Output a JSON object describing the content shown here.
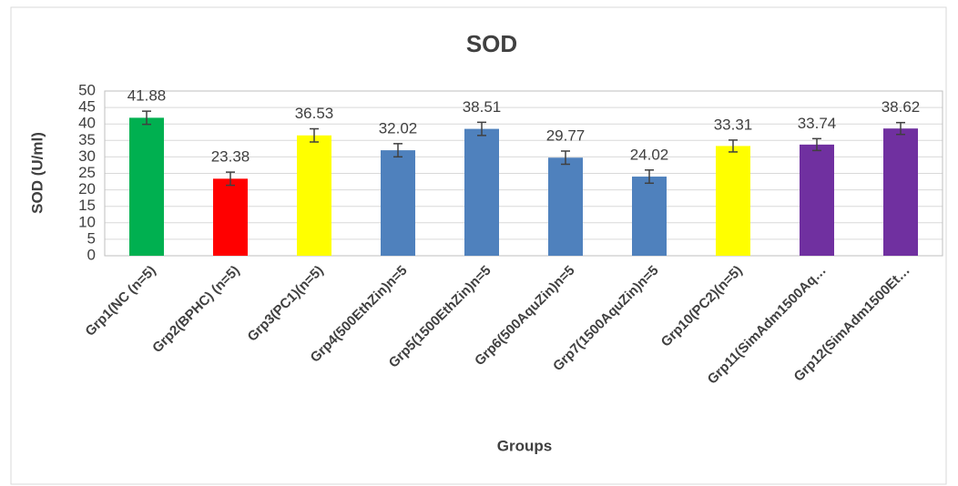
{
  "chart_data": {
    "type": "bar",
    "title": "SOD",
    "x_label": "Groups",
    "y_label": "SOD (U/ml)",
    "categories": [
      "Grp1(NC (n=5)",
      "Grp2(BPHC) (n=5)",
      "Grp3(PC1)(n=5)",
      "Grp4(500EthZin)n=5",
      "Grp5(1500EthZin)n=5",
      "Grp6(500AquZin)n=5",
      "Grp7(1500AquZin)n=5",
      "Grp10(PC2)(n=5)",
      "Grp11(SimAdm1500Aq…",
      "Grp12(SimAdm1500Et…"
    ],
    "values": [
      41.88,
      23.38,
      36.53,
      32.02,
      38.51,
      29.77,
      24.02,
      33.31,
      33.74,
      38.62
    ],
    "errors": [
      2,
      2,
      2,
      2,
      2,
      2,
      2,
      1.8,
      1.8,
      1.8
    ],
    "colors": [
      "#00b050",
      "#ff0000",
      "#ffff00",
      "#4f81bd",
      "#4f81bd",
      "#4f81bd",
      "#4f81bd",
      "#ffff00",
      "#7030a0",
      "#7030a0"
    ],
    "ylim": [
      0,
      50
    ],
    "yticks": [
      0,
      5,
      10,
      15,
      20,
      25,
      30,
      35,
      40,
      45,
      50
    ],
    "grid": true
  }
}
